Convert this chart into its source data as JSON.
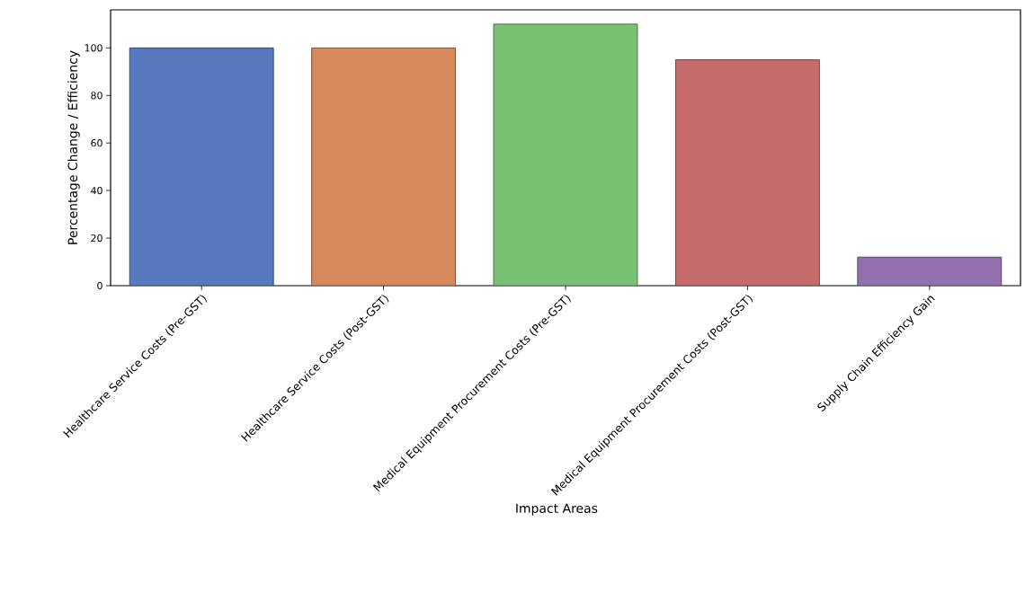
{
  "chart_data": {
    "type": "bar",
    "xlabel": "Impact Areas",
    "ylabel": "Percentage Change / Efficiency",
    "categories": [
      "Healthcare Service Costs (Pre-GST)",
      "Healthcare Service Costs (Post-GST)",
      "Medical Equipment Procurement Costs (Pre-GST)",
      "Medical Equipment Procurement Costs (Post-GST)",
      "Supply Chain Efficiency Gain"
    ],
    "values": [
      100,
      100,
      110,
      95,
      12
    ],
    "colors": [
      "#5779bd",
      "#d6895a",
      "#78c172",
      "#c66b6b",
      "#9270b0"
    ],
    "ylim": [
      0,
      116
    ],
    "yticks": [
      0,
      20,
      40,
      60,
      80,
      100
    ],
    "grid": false
  }
}
